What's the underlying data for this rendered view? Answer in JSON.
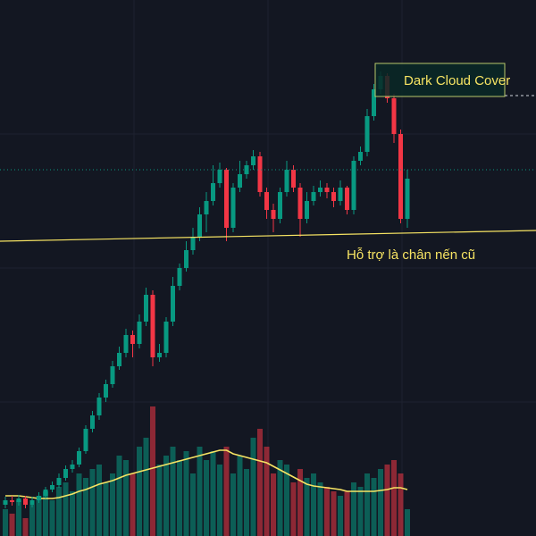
{
  "chart_data": {
    "type": "candlestick",
    "annotations": [
      "Dark Cloud Cover",
      "Hỗ trợ là chân nến cũ"
    ],
    "ylim": [
      0,
      600
    ],
    "up_color": "#089981",
    "down_color": "#f23645",
    "ma_color": "#f7e463",
    "open": [
      35,
      40,
      38,
      42,
      35,
      40,
      45,
      52,
      57,
      65,
      75,
      80,
      95,
      120,
      135,
      155,
      170,
      190,
      205,
      225,
      215,
      240,
      270,
      200,
      205,
      240,
      280,
      300,
      320,
      335,
      360,
      375,
      395,
      410,
      345,
      390,
      405,
      415,
      425,
      385,
      365,
      355,
      385,
      410,
      390,
      355,
      375,
      385,
      390,
      385,
      375,
      390,
      365,
      420,
      430,
      470,
      500,
      515,
      490,
      450,
      355
    ],
    "high": [
      44,
      45,
      46,
      45,
      44,
      49,
      55,
      61,
      70,
      79,
      85,
      99,
      124,
      140,
      160,
      175,
      196,
      212,
      232,
      230,
      248,
      278,
      275,
      215,
      245,
      290,
      305,
      330,
      345,
      368,
      385,
      415,
      418,
      412,
      395,
      420,
      420,
      432,
      430,
      390,
      372,
      390,
      420,
      415,
      395,
      385,
      392,
      398,
      395,
      390,
      398,
      392,
      425,
      436,
      478,
      506,
      520,
      518,
      495,
      455,
      410
    ],
    "low": [
      31,
      34,
      34,
      31,
      32,
      37,
      42,
      49,
      54,
      62,
      71,
      77,
      92,
      116,
      130,
      150,
      166,
      186,
      200,
      200,
      210,
      235,
      190,
      195,
      200,
      235,
      275,
      296,
      315,
      330,
      340,
      370,
      390,
      330,
      340,
      385,
      400,
      410,
      380,
      355,
      340,
      350,
      380,
      385,
      335,
      350,
      370,
      380,
      378,
      368,
      370,
      360,
      360,
      415,
      425,
      465,
      495,
      485,
      440,
      350,
      345
    ],
    "close": [
      40,
      38,
      42,
      35,
      40,
      45,
      52,
      57,
      65,
      75,
      80,
      95,
      120,
      135,
      155,
      170,
      190,
      205,
      225,
      215,
      240,
      270,
      200,
      205,
      240,
      280,
      300,
      320,
      335,
      360,
      375,
      395,
      410,
      345,
      390,
      405,
      415,
      425,
      385,
      365,
      355,
      385,
      410,
      390,
      355,
      375,
      385,
      390,
      385,
      375,
      390,
      365,
      420,
      430,
      470,
      500,
      515,
      490,
      450,
      355,
      400
    ],
    "volume": [
      30,
      25,
      40,
      20,
      35,
      45,
      50,
      40,
      55,
      60,
      50,
      70,
      65,
      75,
      80,
      60,
      70,
      90,
      85,
      70,
      100,
      110,
      145,
      80,
      90,
      100,
      85,
      95,
      70,
      100,
      85,
      95,
      80,
      100,
      70,
      90,
      75,
      110,
      120,
      100,
      70,
      85,
      80,
      60,
      75,
      65,
      70,
      60,
      55,
      50,
      45,
      50,
      60,
      55,
      70,
      65,
      75,
      80,
      85,
      70,
      30
    ],
    "volume_ma": [
      45,
      45,
      45,
      44,
      43,
      42,
      42,
      42,
      43,
      45,
      47,
      50,
      52,
      55,
      58,
      60,
      62,
      65,
      68,
      70,
      72,
      74,
      76,
      78,
      80,
      82,
      84,
      86,
      88,
      90,
      92,
      94,
      96,
      96,
      92,
      90,
      88,
      86,
      84,
      82,
      78,
      74,
      70,
      66,
      62,
      58,
      56,
      55,
      54,
      53,
      52,
      50,
      50,
      50,
      50,
      50,
      51,
      52,
      54,
      54,
      52
    ]
  }
}
